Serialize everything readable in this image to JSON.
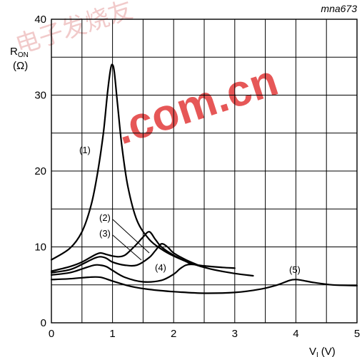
{
  "figure_code": "mna673",
  "watermark": {
    "text": ".com.cn",
    "chars": "电子发烧友"
  },
  "chart_data": {
    "type": "line",
    "title": "",
    "xlabel_main": "V",
    "xlabel_sub": "I",
    "xlabel_unit": "(V)",
    "ylabel_main": "R",
    "ylabel_sub": "ON",
    "ylabel_unit": "(Ω)",
    "xlim": [
      0,
      5
    ],
    "ylim": [
      0,
      40
    ],
    "x_ticks": [
      "0",
      "1",
      "2",
      "3",
      "4",
      "5"
    ],
    "y_ticks": [
      "0",
      "10",
      "20",
      "30",
      "40"
    ],
    "grid": true,
    "series": [
      {
        "name": "(1)",
        "x": [
          0,
          0.3,
          0.5,
          0.65,
          0.75,
          0.85,
          0.92,
          0.97,
          1.0,
          1.03,
          1.08,
          1.15,
          1.25,
          1.4,
          1.6,
          1.8,
          2.0,
          2.3,
          2.6,
          3.0,
          3.3
        ],
        "y": [
          8.3,
          9.8,
          12.0,
          15.5,
          19.5,
          25.0,
          30.5,
          33.5,
          34.0,
          33.0,
          29.0,
          23.5,
          18.0,
          13.5,
          11.0,
          9.7,
          8.8,
          7.8,
          7.1,
          6.5,
          6.2
        ]
      },
      {
        "name": "(2)",
        "x": [
          0,
          0.3,
          0.5,
          0.7,
          0.8,
          0.9,
          1.0,
          1.1,
          1.2,
          1.3,
          1.4,
          1.5,
          1.6,
          1.7,
          1.8,
          2.0,
          2.3
        ],
        "y": [
          6.8,
          7.4,
          8.0,
          8.9,
          9.2,
          9.0,
          8.8,
          8.7,
          8.9,
          9.6,
          10.4,
          11.3,
          12.0,
          11.0,
          10.0,
          8.9,
          7.7
        ]
      },
      {
        "name": "(3)",
        "x": [
          0,
          0.3,
          0.5,
          0.7,
          0.8,
          0.9,
          1.0,
          1.2,
          1.4,
          1.6,
          1.7,
          1.8,
          1.9,
          2.0,
          2.2,
          2.4
        ],
        "y": [
          6.6,
          7.0,
          7.7,
          8.5,
          8.7,
          8.5,
          8.0,
          7.6,
          7.6,
          8.6,
          9.5,
          10.4,
          10.0,
          9.2,
          8.3,
          7.6
        ]
      },
      {
        "name": "(4)",
        "x": [
          0,
          0.3,
          0.5,
          0.7,
          0.8,
          0.9,
          1.0,
          1.2,
          1.5,
          1.8,
          2.0,
          2.1,
          2.2,
          2.3,
          2.5,
          2.8,
          3.0
        ],
        "y": [
          6.3,
          6.6,
          7.1,
          7.6,
          7.6,
          7.4,
          6.9,
          6.0,
          5.4,
          5.6,
          6.4,
          7.1,
          7.6,
          7.7,
          7.5,
          7.3,
          7.2
        ]
      },
      {
        "name": "(5)",
        "x": [
          0,
          0.3,
          0.6,
          0.8,
          1.0,
          1.3,
          1.6,
          2.0,
          2.5,
          3.0,
          3.4,
          3.7,
          3.9,
          4.0,
          4.1,
          4.3,
          4.6,
          5.0
        ],
        "y": [
          5.7,
          5.8,
          6.0,
          6.0,
          5.5,
          4.8,
          4.4,
          4.1,
          3.9,
          4.0,
          4.4,
          5.0,
          5.6,
          5.7,
          5.6,
          5.3,
          5.0,
          4.9
        ]
      }
    ],
    "annotations": [
      "(1)",
      "(2)",
      "(3)",
      "(4)",
      "(5)"
    ]
  }
}
